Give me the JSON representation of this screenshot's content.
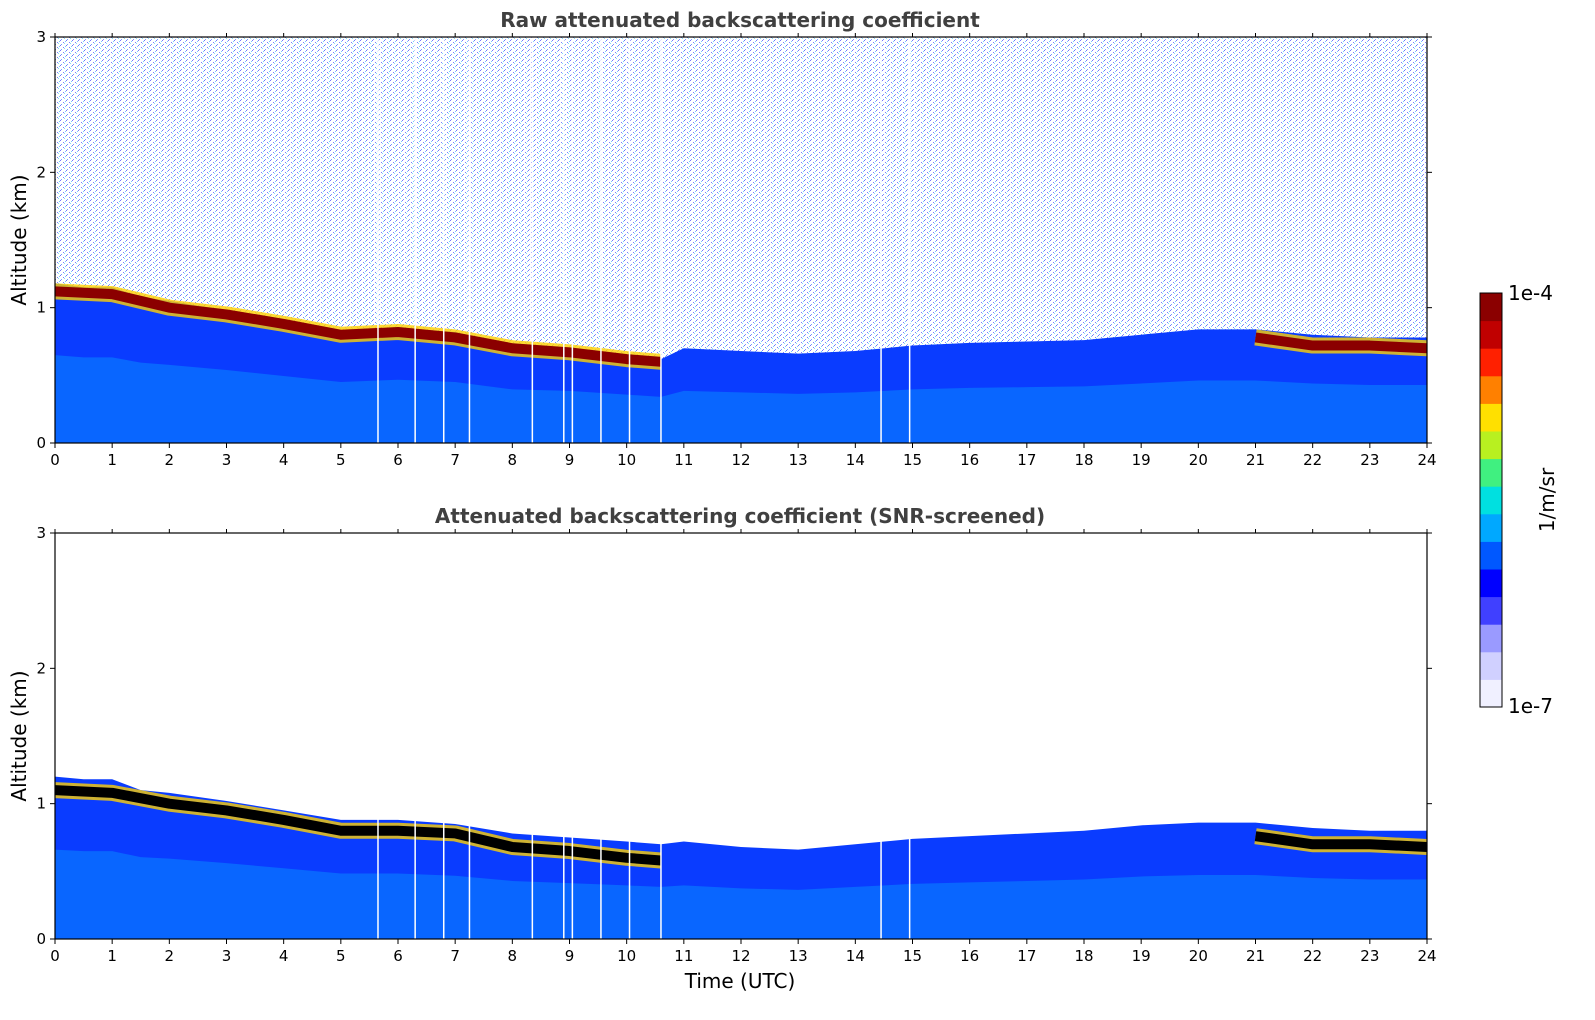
{
  "colors": {
    "colormap": [
      "#f0f0ff",
      "#d0d0ff",
      "#9a9aff",
      "#4040ff",
      "#0000ff",
      "#0058ff",
      "#00a8ff",
      "#00e0e0",
      "#40f080",
      "#b8f020",
      "#ffe000",
      "#ff8000",
      "#ff2000",
      "#c00000",
      "#8b0000"
    ],
    "cloud_layer_screened": "#000000"
  },
  "chart_data": [
    {
      "type": "heatmap",
      "panel": "top",
      "title": "Raw attenuated backscattering coefficient",
      "xlabel": "",
      "ylabel": "Altitude (km)",
      "xlim": [
        0,
        24
      ],
      "ylim": [
        0,
        3
      ],
      "xticks": [
        "0",
        "1",
        "2",
        "3",
        "4",
        "5",
        "6",
        "7",
        "8",
        "9",
        "10",
        "11",
        "12",
        "13",
        "14",
        "15",
        "16",
        "17",
        "18",
        "19",
        "20",
        "21",
        "22",
        "23",
        "24"
      ],
      "yticks": [
        "0",
        "1",
        "2",
        "3"
      ],
      "layer_top_km": [
        [
          0,
          1.18
        ],
        [
          0.5,
          1.15
        ],
        [
          1,
          1.15
        ],
        [
          1.5,
          1.08
        ],
        [
          2,
          1.05
        ],
        [
          3,
          0.98
        ],
        [
          4,
          0.9
        ],
        [
          5,
          0.82
        ],
        [
          6,
          0.85
        ],
        [
          7,
          0.82
        ],
        [
          8,
          0.72
        ],
        [
          9,
          0.7
        ],
        [
          10,
          0.65
        ],
        [
          10.6,
          0.62
        ],
        [
          11,
          0.7
        ],
        [
          12,
          0.68
        ],
        [
          13,
          0.66
        ],
        [
          14,
          0.68
        ],
        [
          15,
          0.72
        ],
        [
          16,
          0.74
        ],
        [
          17,
          0.75
        ],
        [
          18,
          0.76
        ],
        [
          19,
          0.8
        ],
        [
          20,
          0.84
        ],
        [
          21,
          0.84
        ],
        [
          22,
          0.8
        ],
        [
          23,
          0.78
        ],
        [
          24,
          0.78
        ]
      ],
      "dense_layer_km": [
        [
          0,
          1.12
        ],
        [
          1,
          1.1
        ],
        [
          2,
          1.0
        ],
        [
          3,
          0.95
        ],
        [
          4,
          0.88
        ],
        [
          5,
          0.8
        ],
        [
          6,
          0.82
        ],
        [
          7,
          0.78
        ],
        [
          8,
          0.7
        ],
        [
          9,
          0.67
        ],
        [
          10,
          0.62
        ],
        [
          10.6,
          0.6
        ],
        [
          21,
          0.78
        ],
        [
          22,
          0.72
        ],
        [
          23,
          0.72
        ],
        [
          24,
          0.7
        ]
      ],
      "data_gaps_utc": [
        5.65,
        6.3,
        6.8,
        7.25,
        8.35,
        8.9,
        9.05,
        9.55,
        10.05,
        10.6,
        14.45,
        14.95
      ]
    },
    {
      "type": "heatmap",
      "panel": "bottom",
      "title": "Attenuated backscattering coefficient (SNR-screened)",
      "xlabel": "Time (UTC)",
      "ylabel": "Altitude (km)",
      "xlim": [
        0,
        24
      ],
      "ylim": [
        0,
        3
      ],
      "xticks": [
        "0",
        "1",
        "2",
        "3",
        "4",
        "5",
        "6",
        "7",
        "8",
        "9",
        "10",
        "11",
        "12",
        "13",
        "14",
        "15",
        "16",
        "17",
        "18",
        "19",
        "20",
        "21",
        "22",
        "23",
        "24"
      ],
      "yticks": [
        "0",
        "1",
        "2",
        "3"
      ],
      "layer_top_km": [
        [
          0,
          1.2
        ],
        [
          0.5,
          1.18
        ],
        [
          1,
          1.18
        ],
        [
          1.5,
          1.1
        ],
        [
          2,
          1.08
        ],
        [
          3,
          1.02
        ],
        [
          4,
          0.95
        ],
        [
          5,
          0.88
        ],
        [
          6,
          0.88
        ],
        [
          7,
          0.85
        ],
        [
          8,
          0.78
        ],
        [
          9,
          0.75
        ],
        [
          10,
          0.72
        ],
        [
          10.6,
          0.7
        ],
        [
          11,
          0.72
        ],
        [
          12,
          0.68
        ],
        [
          13,
          0.66
        ],
        [
          14,
          0.7
        ],
        [
          15,
          0.74
        ],
        [
          16,
          0.76
        ],
        [
          17,
          0.78
        ],
        [
          18,
          0.8
        ],
        [
          19,
          0.84
        ],
        [
          20,
          0.86
        ],
        [
          21,
          0.86
        ],
        [
          22,
          0.82
        ],
        [
          23,
          0.8
        ],
        [
          24,
          0.8
        ]
      ],
      "dense_layer_km": [
        [
          0,
          1.1
        ],
        [
          1,
          1.08
        ],
        [
          2,
          1.0
        ],
        [
          3,
          0.95
        ],
        [
          4,
          0.88
        ],
        [
          5,
          0.8
        ],
        [
          6,
          0.8
        ],
        [
          7,
          0.78
        ],
        [
          8,
          0.68
        ],
        [
          9,
          0.65
        ],
        [
          10,
          0.6
        ],
        [
          10.6,
          0.58
        ],
        [
          21,
          0.76
        ],
        [
          22,
          0.7
        ],
        [
          23,
          0.7
        ],
        [
          24,
          0.68
        ]
      ],
      "data_gaps_utc": [
        5.65,
        6.3,
        6.8,
        7.25,
        8.35,
        8.9,
        9.05,
        9.55,
        10.05,
        10.6,
        14.45,
        14.95
      ]
    }
  ],
  "colorbar": {
    "label": "1/m/sr",
    "max_label": "1e-4",
    "min_label": "1e-7"
  }
}
